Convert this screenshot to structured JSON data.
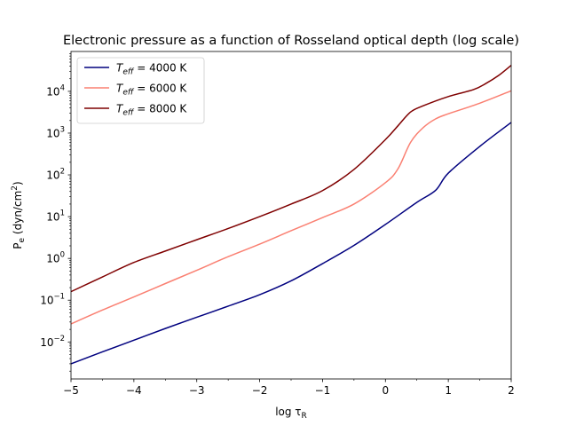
{
  "chart_data": {
    "type": "line",
    "title": "Electronic pressure as a function of Rosseland optical depth (log scale)",
    "xlabel": {
      "main": "log τ",
      "sub": "R"
    },
    "ylabel": {
      "main": "P",
      "sub": "e",
      "rest": " (dyn/cm",
      "sup": "2",
      "end": ")"
    },
    "x_scale": "linear",
    "y_scale": "log",
    "xlim": [
      -5,
      2
    ],
    "ylim": [
      0.0013,
      90000
    ],
    "x_ticks": [
      -5,
      -4,
      -3,
      -2,
      -1,
      0,
      1,
      2
    ],
    "x_tick_labels": [
      "−5",
      "−4",
      "−3",
      "−2",
      "−1",
      "0",
      "1",
      "2"
    ],
    "y_ticks": [
      0.01,
      0.1,
      1,
      10,
      100,
      1000,
      10000
    ],
    "y_tick_labels": [
      {
        "base": "10",
        "exp": "−2"
      },
      {
        "base": "10",
        "exp": "−1"
      },
      {
        "base": "10",
        "exp": "0"
      },
      {
        "base": "10",
        "exp": "1"
      },
      {
        "base": "10",
        "exp": "2"
      },
      {
        "base": "10",
        "exp": "3"
      },
      {
        "base": "10",
        "exp": "4"
      }
    ],
    "grid": false,
    "legend_position": "top-left",
    "series": [
      {
        "name": {
          "pre": "T",
          "sub": "eff",
          "post": " = 4000 K"
        },
        "color": "#00007f",
        "x": [
          -5,
          -4.5,
          -4,
          -3.5,
          -3,
          -2.5,
          -2,
          -1.5,
          -1,
          -0.5,
          0,
          0.5,
          0.8,
          1,
          1.5,
          2
        ],
        "y": [
          0.003,
          0.0058,
          0.011,
          0.021,
          0.039,
          0.072,
          0.135,
          0.29,
          0.75,
          2.05,
          6.5,
          22,
          43,
          110,
          480,
          1800
        ]
      },
      {
        "name": {
          "pre": "T",
          "sub": "eff",
          "post": " = 6000 K"
        },
        "color": "#fa8072",
        "x": [
          -5,
          -4.5,
          -4,
          -3.5,
          -3,
          -2.5,
          -2,
          -1.5,
          -1,
          -0.5,
          0,
          0.2,
          0.4,
          0.6,
          0.8,
          1,
          1.5,
          2
        ],
        "y": [
          0.027,
          0.058,
          0.12,
          0.25,
          0.52,
          1.1,
          2.2,
          4.6,
          9.5,
          20,
          65,
          140,
          600,
          1350,
          2200,
          2900,
          5200,
          10300
        ]
      },
      {
        "name": {
          "pre": "T",
          "sub": "eff",
          "post": " = 8000 K"
        },
        "color": "#7f0000",
        "x": [
          -5,
          -4.5,
          -4,
          -3.5,
          -3,
          -2.5,
          -2,
          -1.5,
          -1,
          -0.5,
          0,
          0.2,
          0.4,
          0.6,
          1,
          1.4,
          1.6,
          1.8,
          2
        ],
        "y": [
          0.16,
          0.36,
          0.8,
          1.5,
          2.8,
          5.2,
          10,
          20,
          42,
          135,
          700,
          1500,
          3200,
          4500,
          7500,
          11000,
          15500,
          24000,
          42000
        ]
      }
    ]
  }
}
